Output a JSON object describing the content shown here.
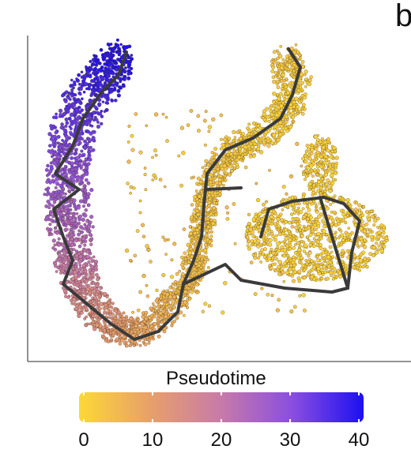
{
  "panel_label": "b",
  "chart_data": {
    "type": "scatter",
    "title": "",
    "xlabel": "",
    "ylabel": "",
    "grid": false,
    "colorbar": {
      "title": "Pseudotime",
      "range": [
        0,
        40
      ],
      "ticks": [
        0,
        10,
        20,
        30,
        40
      ],
      "tick_labels": [
        "0",
        "10",
        "20",
        "30",
        "40"
      ],
      "colors": [
        "#fdd835",
        "#e8a06a",
        "#c77aa8",
        "#8a4ee0",
        "#1d10f0"
      ],
      "placement": "bottom"
    },
    "trajectory_color": "#3a3a3a"
  }
}
